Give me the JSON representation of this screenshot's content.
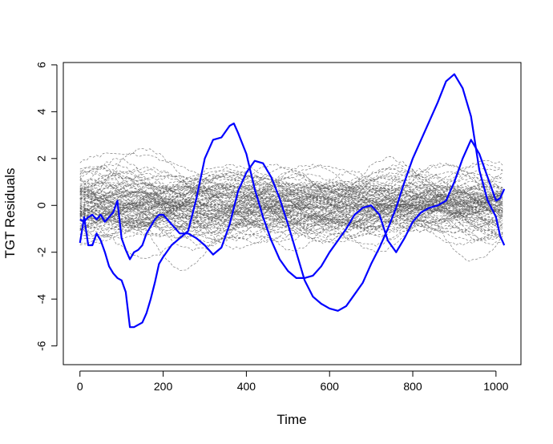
{
  "chart_data": {
    "type": "line",
    "title": "",
    "xlabel": "Time",
    "ylabel": "TGT Residuals",
    "xlim": [
      -40,
      1060
    ],
    "ylim": [
      -6.8,
      6.1
    ],
    "x_ticks": [
      0,
      200,
      400,
      600,
      800,
      1000
    ],
    "y_ticks": [
      -6,
      -4,
      -2,
      0,
      2,
      4,
      6
    ],
    "x_tick_labels": [
      "0",
      "200",
      "400",
      "600",
      "800",
      "1000"
    ],
    "y_tick_labels": [
      "-6",
      "-4",
      "-2",
      "0",
      "2",
      "4",
      "6"
    ],
    "grid": false,
    "legend": "none",
    "background_curves": {
      "description": "many gray dashed residual curves",
      "count": 100,
      "x_range": [
        0,
        1020
      ],
      "typical_range": [
        -3,
        3
      ],
      "color": "#555555"
    },
    "series": [
      {
        "color": "#0000ff",
        "x": [
          0,
          10,
          20,
          30,
          40,
          50,
          60,
          70,
          80,
          90,
          100,
          110,
          120,
          130,
          140,
          150,
          160,
          170,
          180,
          190,
          200,
          220,
          240,
          260,
          280,
          300,
          320,
          340,
          360,
          370,
          380,
          400,
          420,
          440,
          460,
          480,
          500,
          520,
          540,
          560,
          580,
          600,
          620,
          640,
          660,
          680,
          700,
          720,
          740,
          760,
          780,
          800,
          820,
          840,
          860,
          880,
          900,
          920,
          940,
          960,
          980,
          1000,
          1010,
          1020
        ],
        "y": [
          -1.6,
          -0.5,
          -1.7,
          -1.7,
          -1.2,
          -1.5,
          -2.0,
          -2.6,
          -2.9,
          -3.1,
          -3.2,
          -3.7,
          -5.2,
          -5.2,
          -5.1,
          -5.0,
          -4.6,
          -4.0,
          -3.3,
          -2.5,
          -2.2,
          -1.7,
          -1.4,
          -1.1,
          0.3,
          2.0,
          2.8,
          2.9,
          3.4,
          3.5,
          3.1,
          2.2,
          0.7,
          -0.5,
          -1.5,
          -2.3,
          -2.8,
          -3.1,
          -3.1,
          -3.0,
          -2.6,
          -2.0,
          -1.5,
          -1.0,
          -0.4,
          -0.1,
          0.0,
          -0.4,
          -1.5,
          -2.0,
          -1.4,
          -0.7,
          -0.3,
          -0.1,
          0.0,
          0.2,
          1.0,
          2.0,
          2.8,
          2.2,
          1.2,
          0.2,
          0.3,
          0.7
        ]
      },
      {
        "color": "#0000ff",
        "x": [
          0,
          10,
          20,
          30,
          40,
          50,
          60,
          70,
          80,
          90,
          100,
          110,
          120,
          130,
          140,
          150,
          160,
          170,
          180,
          190,
          200,
          220,
          240,
          260,
          280,
          300,
          320,
          340,
          360,
          380,
          400,
          420,
          440,
          460,
          480,
          500,
          520,
          540,
          560,
          580,
          600,
          620,
          640,
          660,
          680,
          700,
          720,
          740,
          760,
          780,
          800,
          820,
          840,
          860,
          880,
          900,
          920,
          940,
          960,
          980,
          1000,
          1010,
          1020
        ],
        "y": [
          -0.6,
          -0.7,
          -0.5,
          -0.4,
          -0.6,
          -0.4,
          -0.7,
          -0.5,
          -0.3,
          0.2,
          -1.4,
          -1.9,
          -2.3,
          -2.0,
          -1.9,
          -1.7,
          -1.2,
          -0.9,
          -0.6,
          -0.4,
          -0.4,
          -0.8,
          -1.2,
          -1.2,
          -1.4,
          -1.7,
          -2.1,
          -1.8,
          -0.8,
          0.6,
          1.4,
          1.9,
          1.8,
          1.2,
          0.3,
          -0.8,
          -2.0,
          -3.2,
          -3.9,
          -4.2,
          -4.4,
          -4.5,
          -4.3,
          -3.8,
          -3.3,
          -2.5,
          -1.8,
          -1.0,
          -0.1,
          1.0,
          2.0,
          2.8,
          3.6,
          4.4,
          5.3,
          5.6,
          5.0,
          3.8,
          1.5,
          0.2,
          -0.5,
          -1.3,
          -1.7
        ]
      }
    ]
  }
}
